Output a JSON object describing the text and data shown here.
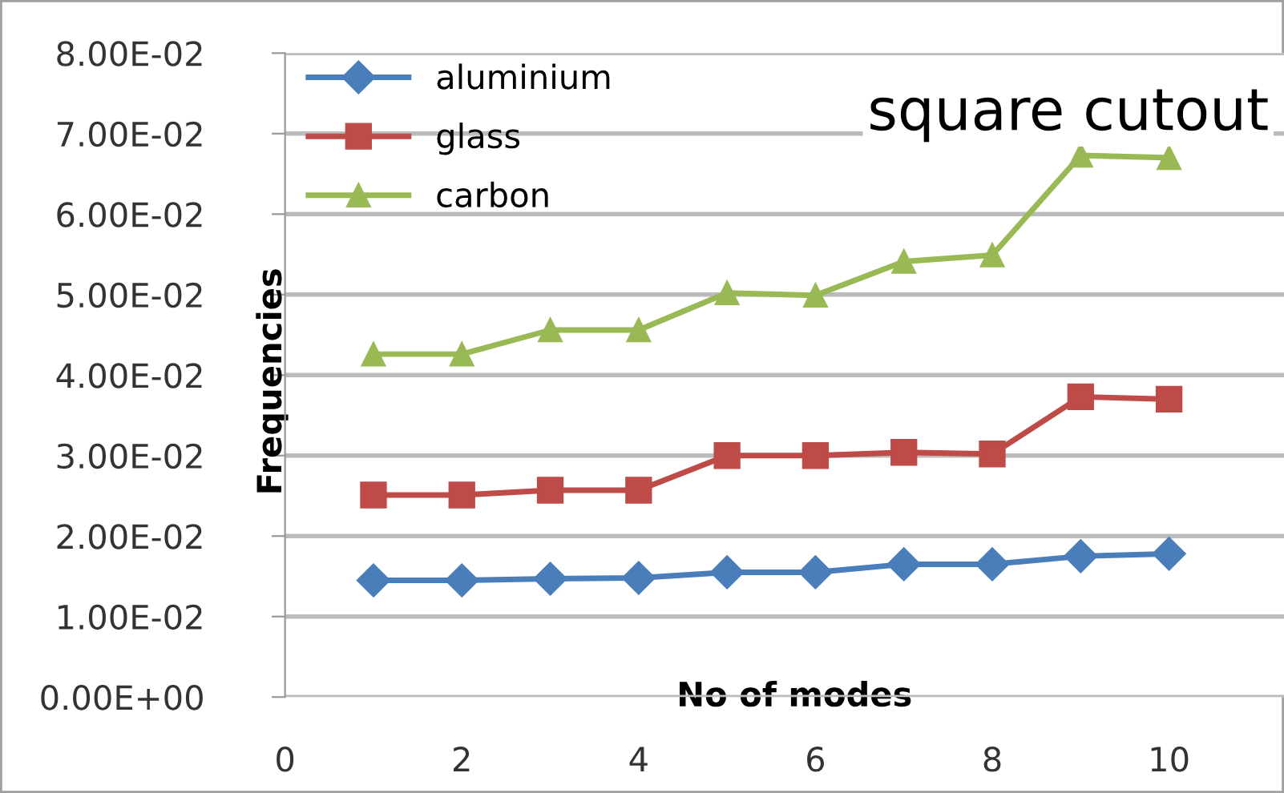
{
  "chart_data": {
    "type": "line",
    "title": "square cutout",
    "xlabel": "No of modes",
    "ylabel": "Frequencies",
    "x": [
      1,
      2,
      3,
      4,
      5,
      6,
      7,
      8,
      9,
      10
    ],
    "series": [
      {
        "name": "aluminium",
        "color": "#4a7ebb",
        "marker": "diamond",
        "values": [
          0.0145,
          0.0145,
          0.0147,
          0.0148,
          0.0155,
          0.0155,
          0.0165,
          0.0165,
          0.0175,
          0.0178
        ]
      },
      {
        "name": "glass",
        "color": "#be4b48",
        "marker": "square",
        "values": [
          0.0251,
          0.0251,
          0.0257,
          0.0257,
          0.03,
          0.03,
          0.0304,
          0.0302,
          0.0373,
          0.037
        ]
      },
      {
        "name": "carbon",
        "color": "#98b954",
        "marker": "triangle",
        "values": [
          0.0426,
          0.0426,
          0.0456,
          0.0456,
          0.0502,
          0.0499,
          0.0541,
          0.0549,
          0.0673,
          0.067
        ]
      }
    ],
    "xlim": [
      0,
      11.3
    ],
    "xticks": [
      0,
      2,
      4,
      6,
      8,
      10
    ],
    "ylim": [
      0,
      0.08
    ],
    "yticks": [
      {
        "value": 0,
        "label": "0.00E+00"
      },
      {
        "value": 0.01,
        "label": "1.00E-02"
      },
      {
        "value": 0.02,
        "label": "2.00E-02"
      },
      {
        "value": 0.03,
        "label": "3.00E-02"
      },
      {
        "value": 0.04,
        "label": "4.00E-02"
      },
      {
        "value": 0.05,
        "label": "5.00E-02"
      },
      {
        "value": 0.06,
        "label": "6.00E-02"
      },
      {
        "value": 0.07,
        "label": "7.00E-02"
      },
      {
        "value": 0.08,
        "label": "8.00E-02"
      }
    ],
    "grid": "y",
    "legend": "top left",
    "line_style": "solid"
  }
}
